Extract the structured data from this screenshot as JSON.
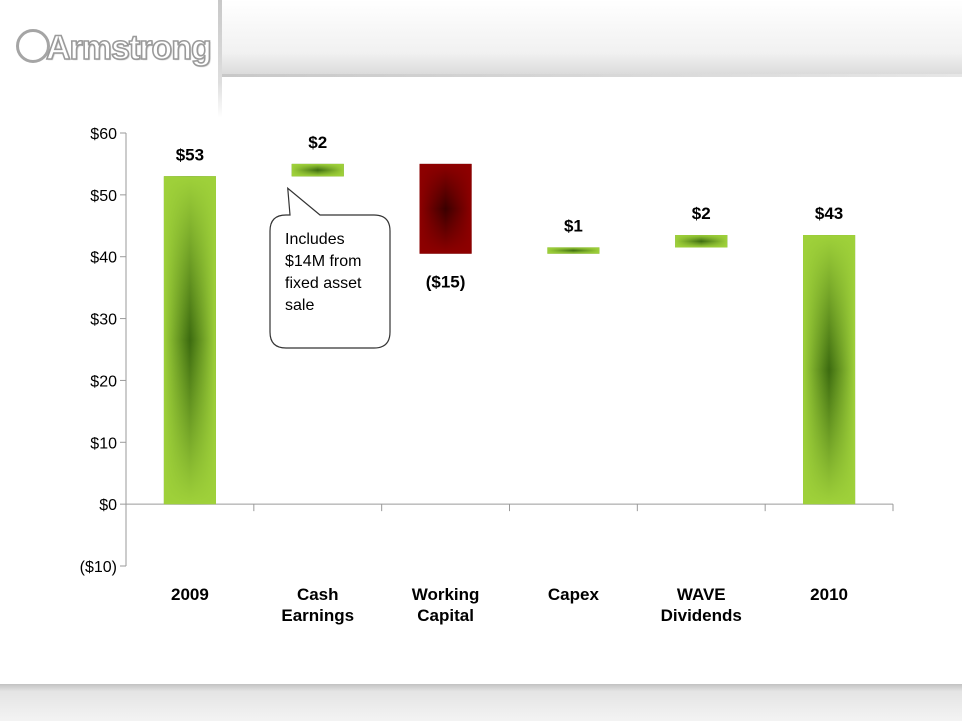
{
  "brand": {
    "logo_text": "Armstrong"
  },
  "colors": {
    "increase": "#8cc63e",
    "decrease": "#8b0000",
    "axis": "#9a9a9a"
  },
  "chart_data": {
    "type": "bar",
    "subtype": "waterfall",
    "title": "",
    "xlabel": "",
    "ylabel": "",
    "ylim": [
      -10,
      60
    ],
    "yticks": [
      -10,
      0,
      10,
      20,
      30,
      40,
      50,
      60
    ],
    "ytick_labels": [
      "($10)",
      "$0",
      "$10",
      "$20",
      "$30",
      "$40",
      "$50",
      "$60"
    ],
    "categories": [
      {
        "lines": [
          "2009"
        ]
      },
      {
        "lines": [
          "Cash",
          "Earnings"
        ]
      },
      {
        "lines": [
          "Working",
          "Capital"
        ]
      },
      {
        "lines": [
          "Capex"
        ]
      },
      {
        "lines": [
          "WAVE",
          "Dividends"
        ]
      },
      {
        "lines": [
          "2010"
        ]
      }
    ],
    "bars": [
      {
        "kind": "total",
        "start": 0,
        "end": 53,
        "label": "$53"
      },
      {
        "kind": "increase",
        "start": 53,
        "end": 55,
        "label": "$2"
      },
      {
        "kind": "decrease",
        "start": 55,
        "end": 40.5,
        "label": "($15)"
      },
      {
        "kind": "increase",
        "start": 40.5,
        "end": 41.5,
        "label": "$1"
      },
      {
        "kind": "increase",
        "start": 41.5,
        "end": 43.5,
        "label": "$2"
      },
      {
        "kind": "total",
        "start": 0,
        "end": 43.5,
        "label": "$43"
      }
    ],
    "annotation": {
      "lines": [
        "Includes",
        "$14M from",
        "fixed asset",
        "sale"
      ],
      "points_to_category": 1
    },
    "grid": false,
    "legend": "none"
  }
}
